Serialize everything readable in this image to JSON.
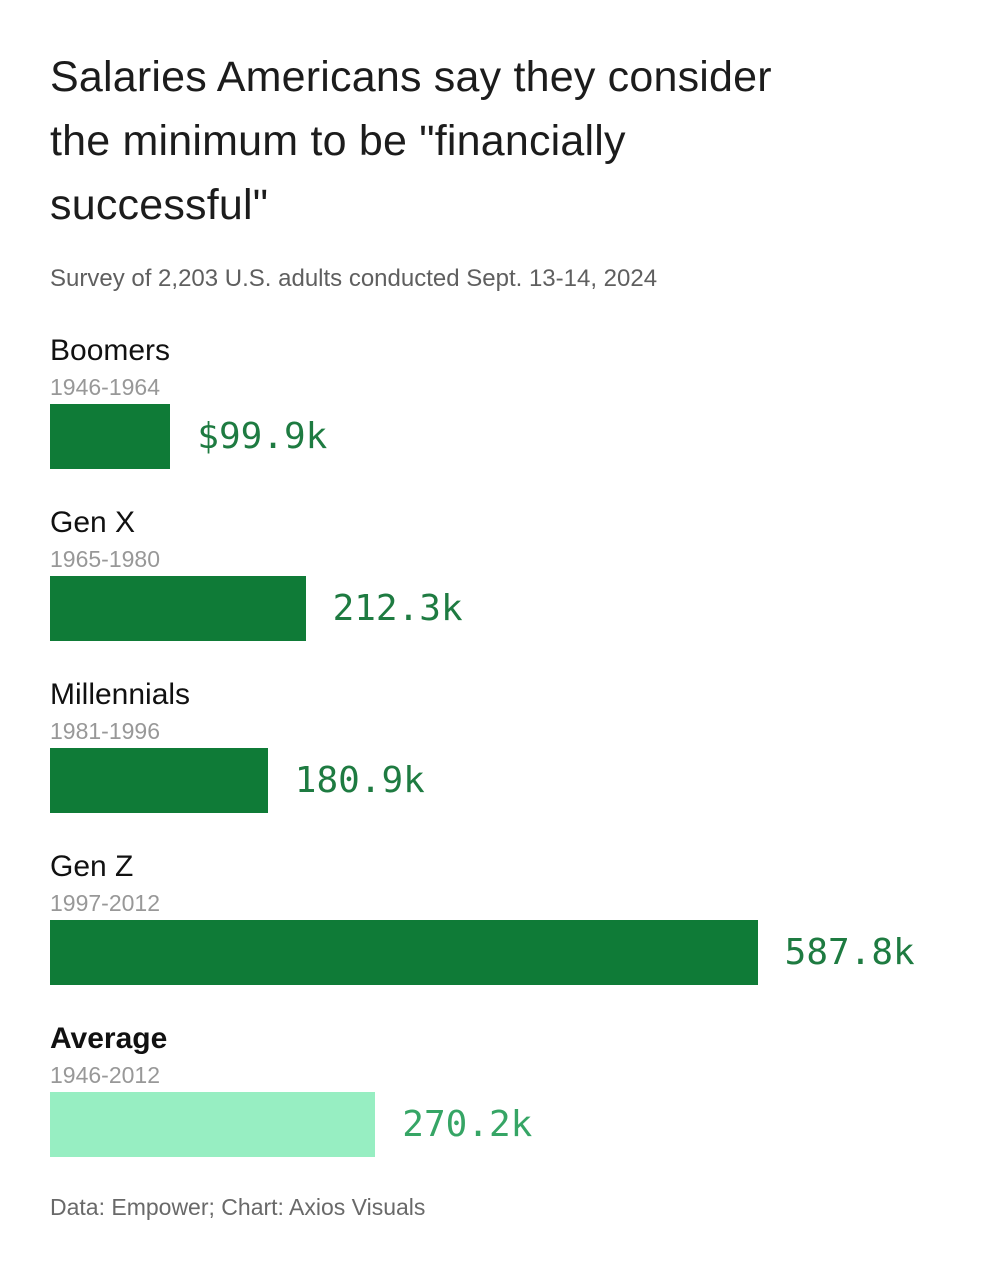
{
  "header": {
    "title": "Salaries Americans say they consider the minimum to be \"financially successful\"",
    "title_lines": [
      "Salaries Americans say they consider",
      "the minimum to be \"financially",
      "successful\""
    ],
    "subtitle": "Survey of 2,203 U.S. adults conducted Sept. 13-14, 2024"
  },
  "footer": {
    "source_line": "Data: Empower; Chart: Axios Visuals"
  },
  "colors": {
    "bar_dark_green": "#0f7b37",
    "bar_light_green": "#97eec2",
    "value_dark_green": "#1e7b41",
    "value_medium_green": "#36a565",
    "title_text": "#1c1c1c",
    "label_text": "#111111",
    "years_text": "#989898",
    "subtitle_text": "#5f5f5f",
    "footer_text": "#696969",
    "background": "#ffffff"
  },
  "chart_data": {
    "type": "bar",
    "orientation": "horizontal",
    "title": "Salaries Americans say they consider the minimum to be \"financially successful\"",
    "subtitle": "Survey of 2,203 U.S. adults conducted Sept. 13-14, 2024",
    "source": "Data: Empower; Chart: Axios Visuals",
    "unit": "USD thousands per year",
    "grid": false,
    "legend": false,
    "axis_labels_shown": false,
    "max_value_k": 587.8,
    "max_bar_width_pct": 79.6,
    "categories": [
      "Boomers",
      "Gen X",
      "Millennials",
      "Gen Z",
      "Average"
    ],
    "rows": [
      {
        "label": "Boomers",
        "years": "1946-1964",
        "value_k": 99.9,
        "value_label": "$99.9k",
        "bar_color": "#0f7b37",
        "value_color": "#1e7b41",
        "label_bold": false
      },
      {
        "label": "Gen X",
        "years": "1965-1980",
        "value_k": 212.3,
        "value_label": "212.3k",
        "bar_color": "#0f7b37",
        "value_color": "#1e7b41",
        "label_bold": false
      },
      {
        "label": "Millennials",
        "years": "1981-1996",
        "value_k": 180.9,
        "value_label": "180.9k",
        "bar_color": "#0f7b37",
        "value_color": "#1e7b41",
        "label_bold": false
      },
      {
        "label": "Gen Z",
        "years": "1997-2012",
        "value_k": 587.8,
        "value_label": "587.8k",
        "bar_color": "#0f7b37",
        "value_color": "#1e7b41",
        "label_bold": false
      },
      {
        "label": "Average",
        "years": "1946-2012",
        "value_k": 270.2,
        "value_label": "270.2k",
        "bar_color": "#97eec2",
        "value_color": "#36a565",
        "label_bold": true
      }
    ]
  }
}
